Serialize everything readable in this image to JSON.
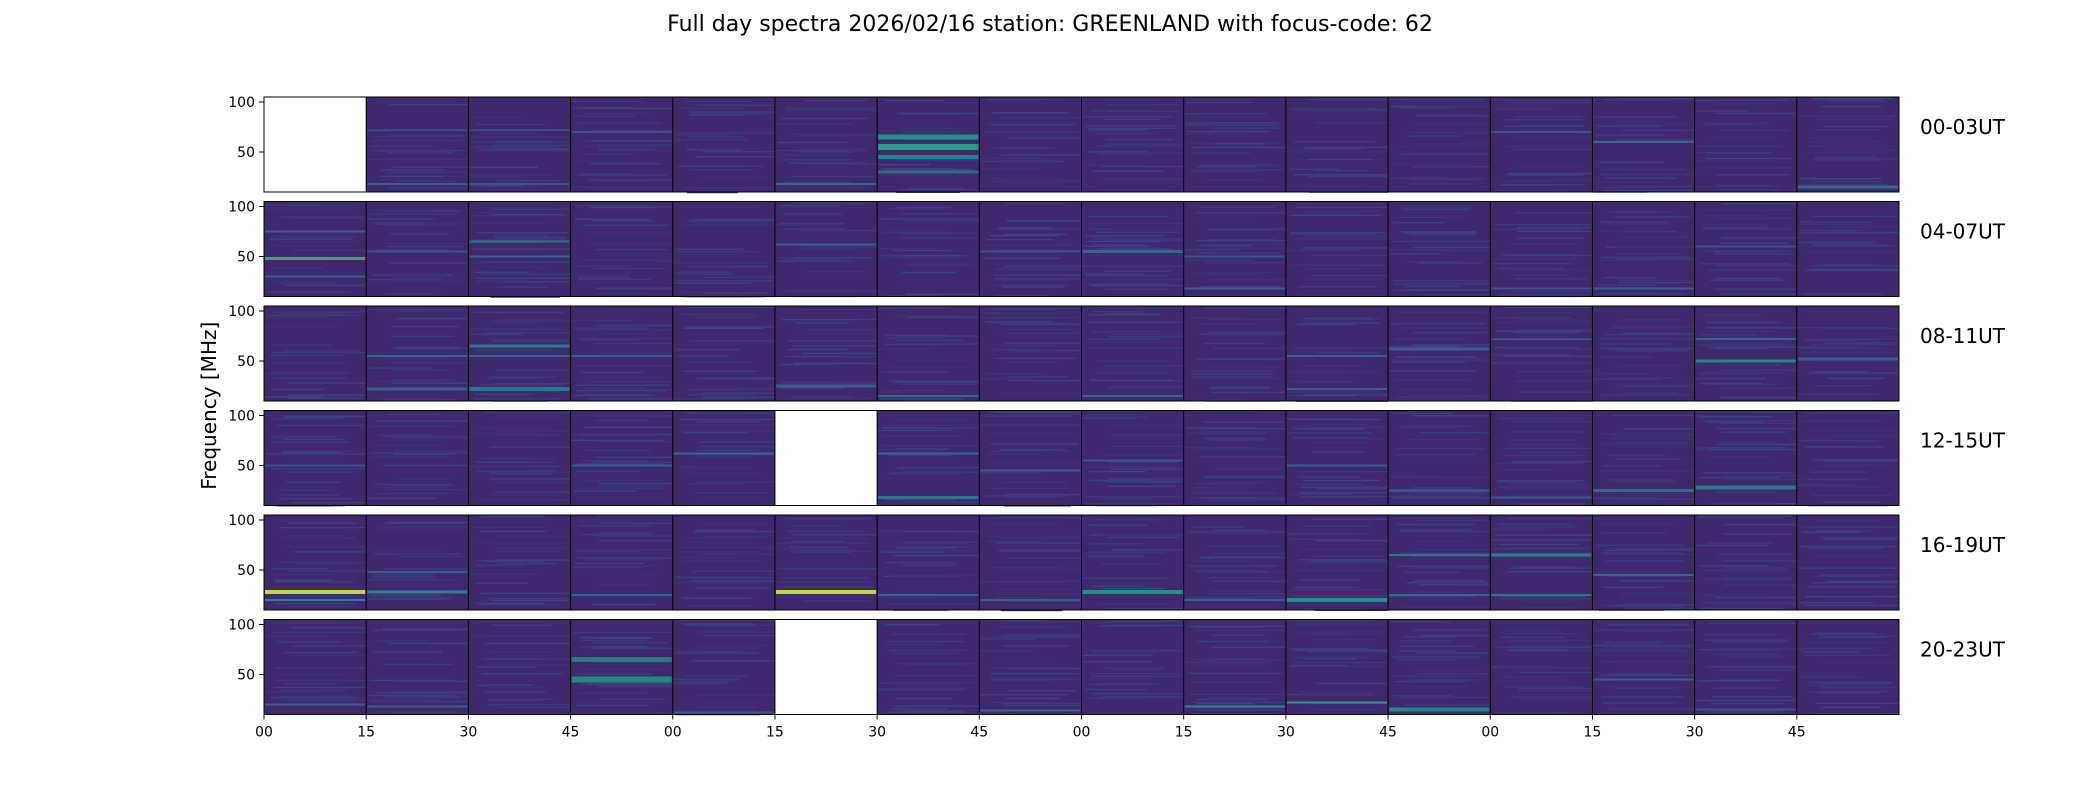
{
  "chart_data": {
    "type": "heatmap",
    "title": "Full day spectra 2026/02/16 station: GREENLAND with focus-code: 62",
    "ylabel": "Frequency [MHz]",
    "ylim": [
      10,
      105
    ],
    "y_ticks": [
      "100",
      "50"
    ],
    "x_tick_labels": [
      "00",
      "15",
      "30",
      "45",
      "00",
      "15",
      "30",
      "45",
      "00",
      "15",
      "30",
      "45",
      "00",
      "15",
      "30",
      "45"
    ],
    "panels_per_row": 16,
    "panel_minutes": 15,
    "colormap": [
      "#440154",
      "#3b528b",
      "#21918c",
      "#5ec962",
      "#fde725"
    ],
    "background_intensity": 0.12,
    "rows": [
      {
        "label": "00-03UT",
        "missing_panels": [
          0
        ],
        "features": [
          {
            "panel": 1,
            "freq": 18,
            "width": 2,
            "intensity": 0.3
          },
          {
            "panel": 1,
            "freq": 72,
            "width": 1,
            "intensity": 0.25
          },
          {
            "panel": 2,
            "freq": 18,
            "width": 2,
            "intensity": 0.25
          },
          {
            "panel": 2,
            "freq": 72,
            "width": 1,
            "intensity": 0.25
          },
          {
            "panel": 3,
            "freq": 70,
            "width": 2,
            "intensity": 0.25
          },
          {
            "panel": 5,
            "freq": 18,
            "width": 2,
            "intensity": 0.35
          },
          {
            "panel": 6,
            "freq": 45,
            "width": 4,
            "intensity": 0.45
          },
          {
            "panel": 6,
            "freq": 55,
            "width": 6,
            "intensity": 0.55
          },
          {
            "panel": 6,
            "freq": 65,
            "width": 5,
            "intensity": 0.5
          },
          {
            "panel": 6,
            "freq": 30,
            "width": 3,
            "intensity": 0.35
          },
          {
            "panel": 12,
            "freq": 70,
            "width": 2,
            "intensity": 0.25
          },
          {
            "panel": 13,
            "freq": 60,
            "width": 2,
            "intensity": 0.35
          },
          {
            "panel": 15,
            "freq": 15,
            "width": 3,
            "intensity": 0.35
          }
        ]
      },
      {
        "label": "04-07UT",
        "missing_panels": [],
        "features": [
          {
            "panel": 0,
            "freq": 48,
            "width": 3,
            "intensity": 0.6
          },
          {
            "panel": 0,
            "freq": 75,
            "width": 2,
            "intensity": 0.3
          },
          {
            "panel": 0,
            "freq": 30,
            "width": 2,
            "intensity": 0.3
          },
          {
            "panel": 1,
            "freq": 55,
            "width": 2,
            "intensity": 0.25
          },
          {
            "panel": 2,
            "freq": 65,
            "width": 2,
            "intensity": 0.35
          },
          {
            "panel": 2,
            "freq": 50,
            "width": 2,
            "intensity": 0.3
          },
          {
            "panel": 5,
            "freq": 62,
            "width": 2,
            "intensity": 0.3
          },
          {
            "panel": 7,
            "freq": 55,
            "width": 2,
            "intensity": 0.25
          },
          {
            "panel": 8,
            "freq": 55,
            "width": 3,
            "intensity": 0.35
          },
          {
            "panel": 9,
            "freq": 50,
            "width": 2,
            "intensity": 0.25
          },
          {
            "panel": 9,
            "freq": 18,
            "width": 2,
            "intensity": 0.3
          },
          {
            "panel": 12,
            "freq": 18,
            "width": 2,
            "intensity": 0.25
          },
          {
            "panel": 13,
            "freq": 18,
            "width": 2,
            "intensity": 0.3
          },
          {
            "panel": 14,
            "freq": 60,
            "width": 2,
            "intensity": 0.25
          }
        ]
      },
      {
        "label": "08-11UT",
        "missing_panels": [],
        "features": [
          {
            "panel": 1,
            "freq": 55,
            "width": 2,
            "intensity": 0.35
          },
          {
            "panel": 1,
            "freq": 22,
            "width": 3,
            "intensity": 0.3
          },
          {
            "panel": 2,
            "freq": 65,
            "width": 3,
            "intensity": 0.4
          },
          {
            "panel": 2,
            "freq": 22,
            "width": 4,
            "intensity": 0.4
          },
          {
            "panel": 2,
            "freq": 55,
            "width": 2,
            "intensity": 0.35
          },
          {
            "panel": 3,
            "freq": 55,
            "width": 2,
            "intensity": 0.3
          },
          {
            "panel": 5,
            "freq": 25,
            "width": 3,
            "intensity": 0.3
          },
          {
            "panel": 6,
            "freq": 15,
            "width": 2,
            "intensity": 0.35
          },
          {
            "panel": 8,
            "freq": 15,
            "width": 2,
            "intensity": 0.35
          },
          {
            "panel": 10,
            "freq": 55,
            "width": 2,
            "intensity": 0.3
          },
          {
            "panel": 10,
            "freq": 22,
            "width": 2,
            "intensity": 0.3
          },
          {
            "panel": 11,
            "freq": 62,
            "width": 3,
            "intensity": 0.3
          },
          {
            "panel": 12,
            "freq": 72,
            "width": 1,
            "intensity": 0.3
          },
          {
            "panel": 14,
            "freq": 72,
            "width": 2,
            "intensity": 0.35
          },
          {
            "panel": 14,
            "freq": 50,
            "width": 3,
            "intensity": 0.45
          },
          {
            "panel": 15,
            "freq": 52,
            "width": 3,
            "intensity": 0.3
          }
        ]
      },
      {
        "label": "12-15UT",
        "missing_panels": [
          5
        ],
        "features": [
          {
            "panel": 0,
            "freq": 50,
            "width": 2,
            "intensity": 0.25
          },
          {
            "panel": 3,
            "freq": 50,
            "width": 2,
            "intensity": 0.3
          },
          {
            "panel": 4,
            "freq": 62,
            "width": 2,
            "intensity": 0.35
          },
          {
            "panel": 6,
            "freq": 62,
            "width": 2,
            "intensity": 0.35
          },
          {
            "panel": 6,
            "freq": 18,
            "width": 3,
            "intensity": 0.4
          },
          {
            "panel": 7,
            "freq": 45,
            "width": 2,
            "intensity": 0.3
          },
          {
            "panel": 8,
            "freq": 55,
            "width": 2,
            "intensity": 0.25
          },
          {
            "panel": 10,
            "freq": 50,
            "width": 2,
            "intensity": 0.3
          },
          {
            "panel": 11,
            "freq": 25,
            "width": 2,
            "intensity": 0.3
          },
          {
            "panel": 12,
            "freq": 18,
            "width": 2,
            "intensity": 0.3
          },
          {
            "panel": 13,
            "freq": 25,
            "width": 3,
            "intensity": 0.35
          },
          {
            "panel": 14,
            "freq": 28,
            "width": 4,
            "intensity": 0.4
          }
        ]
      },
      {
        "label": "16-19UT",
        "missing_panels": [],
        "features": [
          {
            "panel": 0,
            "freq": 28,
            "width": 4,
            "intensity": 0.9
          },
          {
            "panel": 0,
            "freq": 20,
            "width": 2,
            "intensity": 0.45
          },
          {
            "panel": 1,
            "freq": 28,
            "width": 3,
            "intensity": 0.45
          },
          {
            "panel": 1,
            "freq": 48,
            "width": 2,
            "intensity": 0.3
          },
          {
            "panel": 3,
            "freq": 25,
            "width": 2,
            "intensity": 0.35
          },
          {
            "panel": 5,
            "freq": 28,
            "width": 4,
            "intensity": 0.9
          },
          {
            "panel": 6,
            "freq": 25,
            "width": 2,
            "intensity": 0.35
          },
          {
            "panel": 7,
            "freq": 20,
            "width": 2,
            "intensity": 0.3
          },
          {
            "panel": 8,
            "freq": 28,
            "width": 4,
            "intensity": 0.5
          },
          {
            "panel": 9,
            "freq": 20,
            "width": 2,
            "intensity": 0.3
          },
          {
            "panel": 10,
            "freq": 20,
            "width": 4,
            "intensity": 0.5
          },
          {
            "panel": 11,
            "freq": 65,
            "width": 2,
            "intensity": 0.4
          },
          {
            "panel": 11,
            "freq": 25,
            "width": 2,
            "intensity": 0.35
          },
          {
            "panel": 12,
            "freq": 65,
            "width": 3,
            "intensity": 0.45
          },
          {
            "panel": 12,
            "freq": 25,
            "width": 2,
            "intensity": 0.4
          },
          {
            "panel": 13,
            "freq": 45,
            "width": 2,
            "intensity": 0.35
          }
        ]
      },
      {
        "label": "20-23UT",
        "missing_panels": [
          5
        ],
        "features": [
          {
            "panel": 0,
            "freq": 20,
            "width": 2,
            "intensity": 0.3
          },
          {
            "panel": 1,
            "freq": 18,
            "width": 2,
            "intensity": 0.3
          },
          {
            "panel": 3,
            "freq": 45,
            "width": 6,
            "intensity": 0.45
          },
          {
            "panel": 3,
            "freq": 65,
            "width": 5,
            "intensity": 0.4
          },
          {
            "panel": 4,
            "freq": 12,
            "width": 2,
            "intensity": 0.3
          },
          {
            "panel": 7,
            "freq": 14,
            "width": 2,
            "intensity": 0.35
          },
          {
            "panel": 9,
            "freq": 18,
            "width": 2,
            "intensity": 0.5
          },
          {
            "panel": 10,
            "freq": 22,
            "width": 2,
            "intensity": 0.55
          },
          {
            "panel": 11,
            "freq": 15,
            "width": 4,
            "intensity": 0.45
          },
          {
            "panel": 13,
            "freq": 45,
            "width": 2,
            "intensity": 0.3
          },
          {
            "panel": 14,
            "freq": 15,
            "width": 2,
            "intensity": 0.25
          }
        ]
      }
    ]
  }
}
